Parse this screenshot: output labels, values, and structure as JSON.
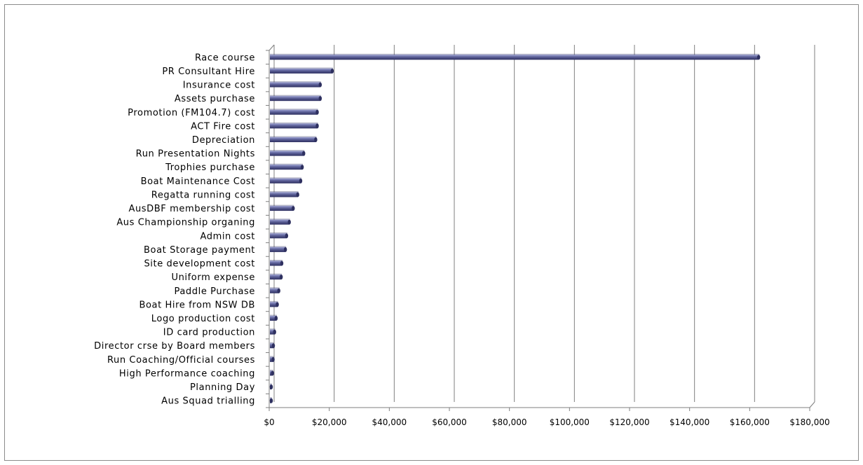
{
  "chart_data": {
    "type": "bar",
    "orientation": "horizontal",
    "style": "3d-cylinder",
    "bar_color": "#5b5f96",
    "bar_color_light": "#9aa0d2",
    "bar_color_dark": "#2e3060",
    "categories": [
      "Race course",
      "PR Consultant Hire",
      "Insurance cost",
      "Assets purchase",
      "Promotion (FM104.7) cost",
      "ACT Fire cost",
      "Depreciation",
      "Run Presentation Nights",
      "Trophies purchase",
      "Boat Maintenance Cost",
      "Regatta running cost",
      "AusDBF membership cost",
      "Aus Championship organing",
      "Admin cost",
      "Boat Storage payment",
      "Site development cost",
      "Uniform expense",
      "Paddle Purchase",
      "Boat Hire from NSW DB",
      "Logo production cost",
      "ID card production",
      "Director crse by Board members",
      "Run Coaching/Official courses",
      "High Performance coaching",
      "Planning Day",
      "Aus Squad trialling"
    ],
    "values": [
      163000,
      21000,
      17000,
      17000,
      16000,
      16000,
      15500,
      11500,
      11000,
      10500,
      9500,
      8000,
      6700,
      5800,
      5400,
      4200,
      4000,
      3200,
      2700,
      2300,
      1800,
      1400,
      1300,
      1100,
      400,
      300
    ],
    "xlim": [
      0,
      180000
    ],
    "xticks": [
      0,
      20000,
      40000,
      60000,
      80000,
      100000,
      120000,
      140000,
      160000,
      180000
    ],
    "xtick_labels": [
      "$0",
      "$20,000",
      "$40,000",
      "$60,000",
      "$80,000",
      "$100,000",
      "$120,000",
      "$140,000",
      "$160,000",
      "$180,000"
    ],
    "grid": true,
    "legend": "none",
    "title": "",
    "xlabel": "",
    "ylabel": ""
  }
}
